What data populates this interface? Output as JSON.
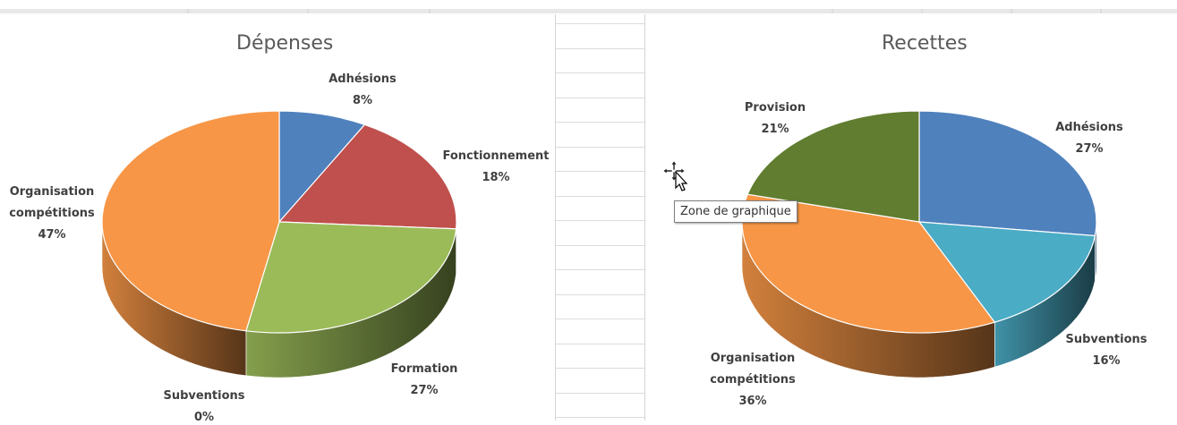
{
  "tooltip": "Zone de graphique",
  "cursor_icon": "move-cursor-icon",
  "chart_data": [
    {
      "type": "pie",
      "title": "Dépenses",
      "style": "3d",
      "slices": [
        {
          "label_lines": [
            "Adhésions"
          ],
          "value_text": "8%",
          "value": 8,
          "color": "#4f81bd"
        },
        {
          "label_lines": [
            "Fonctionnement"
          ],
          "value_text": "18%",
          "value": 18,
          "color": "#c0504d"
        },
        {
          "label_lines": [
            "Formation"
          ],
          "value_text": "27%",
          "value": 27,
          "color": "#9bbb59"
        },
        {
          "label_lines": [
            "Subventions"
          ],
          "value_text": "0%",
          "value": 0,
          "color": "#4bacc6"
        },
        {
          "label_lines": [
            "Organisation",
            "compétitions"
          ],
          "value_text": "47%",
          "value": 47,
          "color": "#f79646"
        }
      ]
    },
    {
      "type": "pie",
      "title": "Recettes",
      "style": "3d",
      "slices": [
        {
          "label_lines": [
            "Adhésions"
          ],
          "value_text": "27%",
          "value": 27,
          "color": "#4f81bd"
        },
        {
          "label_lines": [
            "Subventions"
          ],
          "value_text": "16%",
          "value": 16,
          "color": "#4bacc6"
        },
        {
          "label_lines": [
            "Organisation",
            "compétitions"
          ],
          "value_text": "36%",
          "value": 36,
          "color": "#f79646"
        },
        {
          "label_lines": [
            "Provision"
          ],
          "value_text": "21%",
          "value": 21,
          "color": "#617d2f"
        }
      ]
    }
  ]
}
